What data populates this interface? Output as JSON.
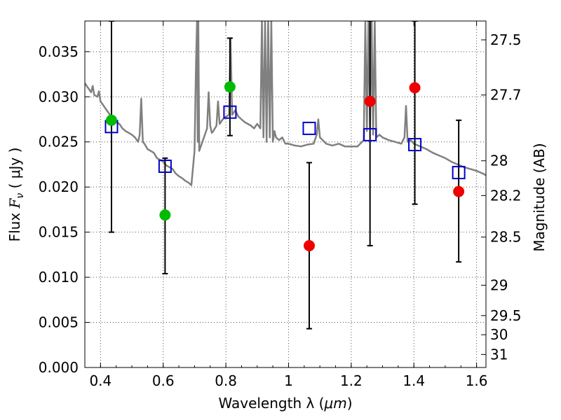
{
  "chart_data": {
    "type": "scatter",
    "title": "",
    "xlabel_text": "Wavelength  λ (",
    "xlabel_unit": "μm",
    "xlabel_close": ")",
    "ylabel_text": "Flux  ",
    "ylabel_var": "F",
    "ylabel_sub": "ν",
    "ylabel_unit": "  ( μJy )",
    "y2label": "Magnitude (AB)",
    "xlim": [
      0.35,
      1.63
    ],
    "ylim": [
      0.0,
      0.0384
    ],
    "grid": true,
    "x_ticks": [
      0.4,
      0.6,
      0.8,
      1.0,
      1.2,
      1.4,
      1.6
    ],
    "x_tick_labels": [
      "0.4",
      "0.6",
      "0.8",
      "1",
      "1.2",
      "1.4",
      "1.6"
    ],
    "y_ticks": [
      0.0,
      0.005,
      0.01,
      0.015,
      0.02,
      0.025,
      0.03,
      0.035
    ],
    "y_tick_labels": [
      "0.000",
      "0.005",
      "0.010",
      "0.015",
      "0.020",
      "0.025",
      "0.030",
      "0.035"
    ],
    "mag_ticks": [
      {
        "label": "27.5",
        "mag": 27.5
      },
      {
        "label": "27.7",
        "mag": 27.7
      },
      {
        "label": "28",
        "mag": 28.0
      },
      {
        "label": "28.2",
        "mag": 28.2
      },
      {
        "label": "28.5",
        "mag": 28.5
      },
      {
        "label": "29",
        "mag": 29.0
      },
      {
        "label": "29.5",
        "mag": 29.5
      },
      {
        "label": "30",
        "mag": 30.0
      },
      {
        "label": "31",
        "mag": 31.0
      }
    ],
    "colors": {
      "spectrum": "#808080",
      "model": "#0000cc",
      "optical": "#00bb00",
      "infrared": "#ee0000",
      "errorbar": "#000000",
      "grid": "#555555"
    },
    "series": [
      {
        "role": "spectrum",
        "x": [
          0.35,
          0.36,
          0.37,
          0.375,
          0.38,
          0.39,
          0.395,
          0.4,
          0.41,
          0.42,
          0.43,
          0.44,
          0.45,
          0.46,
          0.47,
          0.48,
          0.49,
          0.5,
          0.51,
          0.52,
          0.525,
          0.53,
          0.535,
          0.54,
          0.55,
          0.56,
          0.57,
          0.58,
          0.59,
          0.6,
          0.61,
          0.62,
          0.63,
          0.64,
          0.65,
          0.66,
          0.67,
          0.68,
          0.69,
          0.7,
          0.705,
          0.708,
          0.71,
          0.712,
          0.715,
          0.72,
          0.73,
          0.74,
          0.745,
          0.75,
          0.755,
          0.76,
          0.77,
          0.775,
          0.78,
          0.79,
          0.8,
          0.81,
          0.815,
          0.82,
          0.83,
          0.84,
          0.85,
          0.86,
          0.87,
          0.88,
          0.89,
          0.9,
          0.91,
          0.915,
          0.92,
          0.925,
          0.93,
          0.935,
          0.94,
          0.945,
          0.95,
          0.955,
          0.96,
          0.97,
          0.98,
          0.99,
          1.0,
          1.02,
          1.04,
          1.06,
          1.08,
          1.09,
          1.095,
          1.1,
          1.12,
          1.14,
          1.16,
          1.18,
          1.2,
          1.22,
          1.24,
          1.245,
          1.25,
          1.255,
          1.26,
          1.265,
          1.27,
          1.275,
          1.28,
          1.29,
          1.3,
          1.32,
          1.34,
          1.36,
          1.37,
          1.375,
          1.38,
          1.39,
          1.4,
          1.42,
          1.44,
          1.46,
          1.48,
          1.5,
          1.52,
          1.54,
          1.56,
          1.58,
          1.6,
          1.62,
          1.63
        ],
        "y": [
          0.0315,
          0.031,
          0.0305,
          0.0312,
          0.0302,
          0.03,
          0.0306,
          0.0295,
          0.029,
          0.0285,
          0.028,
          0.0275,
          0.0272,
          0.027,
          0.0265,
          0.0262,
          0.026,
          0.0258,
          0.0255,
          0.025,
          0.0258,
          0.0298,
          0.025,
          0.0248,
          0.0242,
          0.024,
          0.0238,
          0.0232,
          0.023,
          0.0228,
          0.0224,
          0.0222,
          0.022,
          0.0215,
          0.0212,
          0.021,
          0.0207,
          0.0205,
          0.0202,
          0.024,
          0.034,
          0.0384,
          0.025,
          0.0384,
          0.024,
          0.0245,
          0.0255,
          0.0265,
          0.0305,
          0.0268,
          0.026,
          0.0262,
          0.0268,
          0.0295,
          0.027,
          0.0275,
          0.0278,
          0.028,
          0.0365,
          0.028,
          0.0285,
          0.0278,
          0.0275,
          0.0272,
          0.027,
          0.0268,
          0.0265,
          0.027,
          0.0265,
          0.0384,
          0.0255,
          0.0384,
          0.025,
          0.0384,
          0.0255,
          0.0384,
          0.025,
          0.0262,
          0.0255,
          0.0252,
          0.0255,
          0.0248,
          0.0248,
          0.0246,
          0.0245,
          0.0247,
          0.0248,
          0.0258,
          0.0275,
          0.0255,
          0.0248,
          0.0246,
          0.0248,
          0.0245,
          0.0245,
          0.0245,
          0.0252,
          0.0384,
          0.0262,
          0.0384,
          0.0265,
          0.0384,
          0.0258,
          0.0384,
          0.0255,
          0.0258,
          0.0255,
          0.0252,
          0.025,
          0.0248,
          0.0255,
          0.029,
          0.025,
          0.0252,
          0.0248,
          0.0245,
          0.0242,
          0.0238,
          0.0235,
          0.0232,
          0.0228,
          0.0225,
          0.0222,
          0.022,
          0.0218,
          0.0215,
          0.0213
        ]
      },
      {
        "role": "model",
        "x": [
          0.435,
          0.606,
          0.813,
          1.066,
          1.26,
          1.403,
          1.543
        ],
        "y": [
          0.0267,
          0.0223,
          0.0283,
          0.0265,
          0.0258,
          0.0247,
          0.0216
        ]
      },
      {
        "role": "optical",
        "x": [
          0.435,
          0.606,
          0.813
        ],
        "y": [
          0.0274,
          0.0169,
          0.0311
        ],
        "yerr_low": [
          0.015,
          0.0104,
          0.0257
        ],
        "yerr_high": [
          0.0384,
          0.0232,
          0.0365
        ]
      },
      {
        "role": "infrared",
        "x": [
          1.066,
          1.26,
          1.403,
          1.543
        ],
        "y": [
          0.0135,
          0.0295,
          0.031,
          0.0195
        ],
        "yerr_low": [
          0.0043,
          0.0135,
          0.0181,
          0.0117
        ],
        "yerr_high": [
          0.0227,
          0.0384,
          0.0384,
          0.0274
        ]
      }
    ]
  }
}
